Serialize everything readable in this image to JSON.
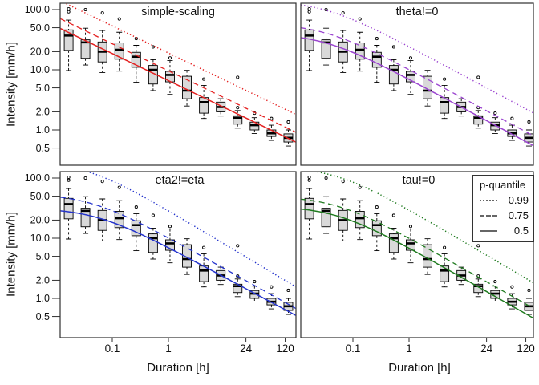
{
  "chart_data": {
    "type": "boxplot+lines",
    "grid": "2x2",
    "x_axis": {
      "label": "Duration [h]",
      "scale": "log",
      "tick_labels": [
        "0.1",
        "1",
        "24",
        "120"
      ],
      "tick_values": [
        0.1,
        1,
        24,
        120
      ],
      "range_h": [
        0.0117,
        187
      ]
    },
    "y_axis": {
      "label": "Intensity [mm/h]",
      "scale": "log",
      "tick_labels": [
        "100.0",
        "50.0",
        "20.0",
        "10.0",
        "5.0",
        "2.0",
        "1.0",
        "0.5"
      ],
      "tick_values": [
        100,
        50,
        20,
        10,
        5,
        2,
        1,
        0.5
      ],
      "range_mmh": [
        0.27,
        128
      ]
    },
    "durations_h": [
      0.0167,
      0.0333,
      0.0667,
      0.1333,
      0.2667,
      0.5333,
      1.0667,
      2.1333,
      4.2667,
      8.5333,
      17.0667,
      34.1333,
      68.2667,
      136.5333
    ],
    "boxplots": [
      {
        "lo": 9.7,
        "q1": 21.0,
        "med": 37.0,
        "q3": 46.0,
        "hi": 67.0,
        "out": [
          92,
          103
        ]
      },
      {
        "lo": 12.0,
        "q1": 15.5,
        "med": 28.5,
        "q3": 31.5,
        "hi": 49.0,
        "out": [
          100
        ]
      },
      {
        "lo": 9.0,
        "q1": 13.5,
        "med": 20.0,
        "q3": 29.0,
        "hi": 45.0,
        "out": [
          88
        ]
      },
      {
        "lo": 9.5,
        "q1": 15.0,
        "med": 21.5,
        "q3": 28.0,
        "hi": 42.0,
        "out": [
          70
        ]
      },
      {
        "lo": 6.2,
        "q1": 11.0,
        "med": 16.5,
        "q3": 19.5,
        "hi": 25.5,
        "out": [
          33
        ]
      },
      {
        "lo": 4.5,
        "q1": 5.8,
        "med": 10.0,
        "q3": 11.8,
        "hi": 14.7,
        "out": [
          24
        ]
      },
      {
        "lo": 3.9,
        "q1": 6.3,
        "med": 8.2,
        "q3": 9.4,
        "hi": 14.2,
        "out": [
          15.7
        ]
      },
      {
        "lo": 2.5,
        "q1": 3.3,
        "med": 4.5,
        "q3": 7.8,
        "hi": 9.8,
        "out": []
      },
      {
        "lo": 1.55,
        "q1": 1.9,
        "med": 2.9,
        "q3": 3.45,
        "hi": 5.5,
        "out": [
          7
        ]
      },
      {
        "lo": 1.7,
        "q1": 2.0,
        "med": 2.4,
        "q3": 2.9,
        "hi": 3.3,
        "out": []
      },
      {
        "lo": 1.07,
        "q1": 1.25,
        "med": 1.6,
        "q3": 1.72,
        "hi": 2.1,
        "out": [
          2.35,
          7.5
        ]
      },
      {
        "lo": 0.87,
        "q1": 1.0,
        "med": 1.2,
        "q3": 1.35,
        "hi": 1.6,
        "out": [
          1.9
        ]
      },
      {
        "lo": 0.67,
        "q1": 0.78,
        "med": 0.88,
        "q3": 1.0,
        "hi": 1.2,
        "out": [
          1.55
        ]
      },
      {
        "lo": 0.54,
        "q1": 0.63,
        "med": 0.74,
        "q3": 0.86,
        "hi": 1.0,
        "out": [
          1.36
        ]
      }
    ],
    "panels": [
      {
        "title": "simple-scaling",
        "color": "#e42020",
        "quantile_curves": {
          "0.99": {
            "A": 19.0,
            "theta": 0,
            "eta": 0.45
          },
          "0.75": {
            "A": 9.6,
            "theta": 0,
            "eta": 0.45
          },
          "0.5": {
            "A": 6.6,
            "theta": 0,
            "eta": 0.45
          }
        }
      },
      {
        "title": "theta!=0",
        "color": "#9b45d0",
        "quantile_curves": {
          "0.99": {
            "A": 24.5,
            "theta": 0.03,
            "eta": 0.5
          },
          "0.75": {
            "A": 10.2,
            "theta": 0.03,
            "eta": 0.5
          },
          "0.5": {
            "A": 7.0,
            "theta": 0.03,
            "eta": 0.5
          }
        }
      },
      {
        "title": "eta2!=eta",
        "color": "#2433cc",
        "quantile_curves": {
          "0.99": {
            "A": 29.0,
            "theta": 0.035,
            "eta": 0.56
          },
          "0.75": {
            "A": 10.3,
            "theta": 0.04,
            "eta": 0.52
          },
          "0.5": {
            "A": 7.1,
            "theta": 0.05,
            "eta": 0.5
          }
        }
      },
      {
        "title": "tau!=0",
        "color": "#1e7a1e",
        "quantile_curves": {
          "0.99": {
            "A": 30.0,
            "theta": 0.05,
            "eta": 0.55
          },
          "0.75": {
            "A": 10.2,
            "theta": 0.05,
            "eta": 0.53
          },
          "0.5": {
            "A": 7.0,
            "theta": 0.05,
            "eta": 0.53
          }
        }
      }
    ],
    "legend": {
      "title": "p-quantile",
      "line_color": "#666666",
      "items": [
        {
          "label": "0.99",
          "line_style": "dotted"
        },
        {
          "label": "0.75",
          "line_style": "dashed"
        },
        {
          "label": "0.5",
          "line_style": "solid"
        }
      ]
    },
    "box_style": {
      "fill": "#d9d9d9",
      "stroke": "#000000"
    }
  }
}
